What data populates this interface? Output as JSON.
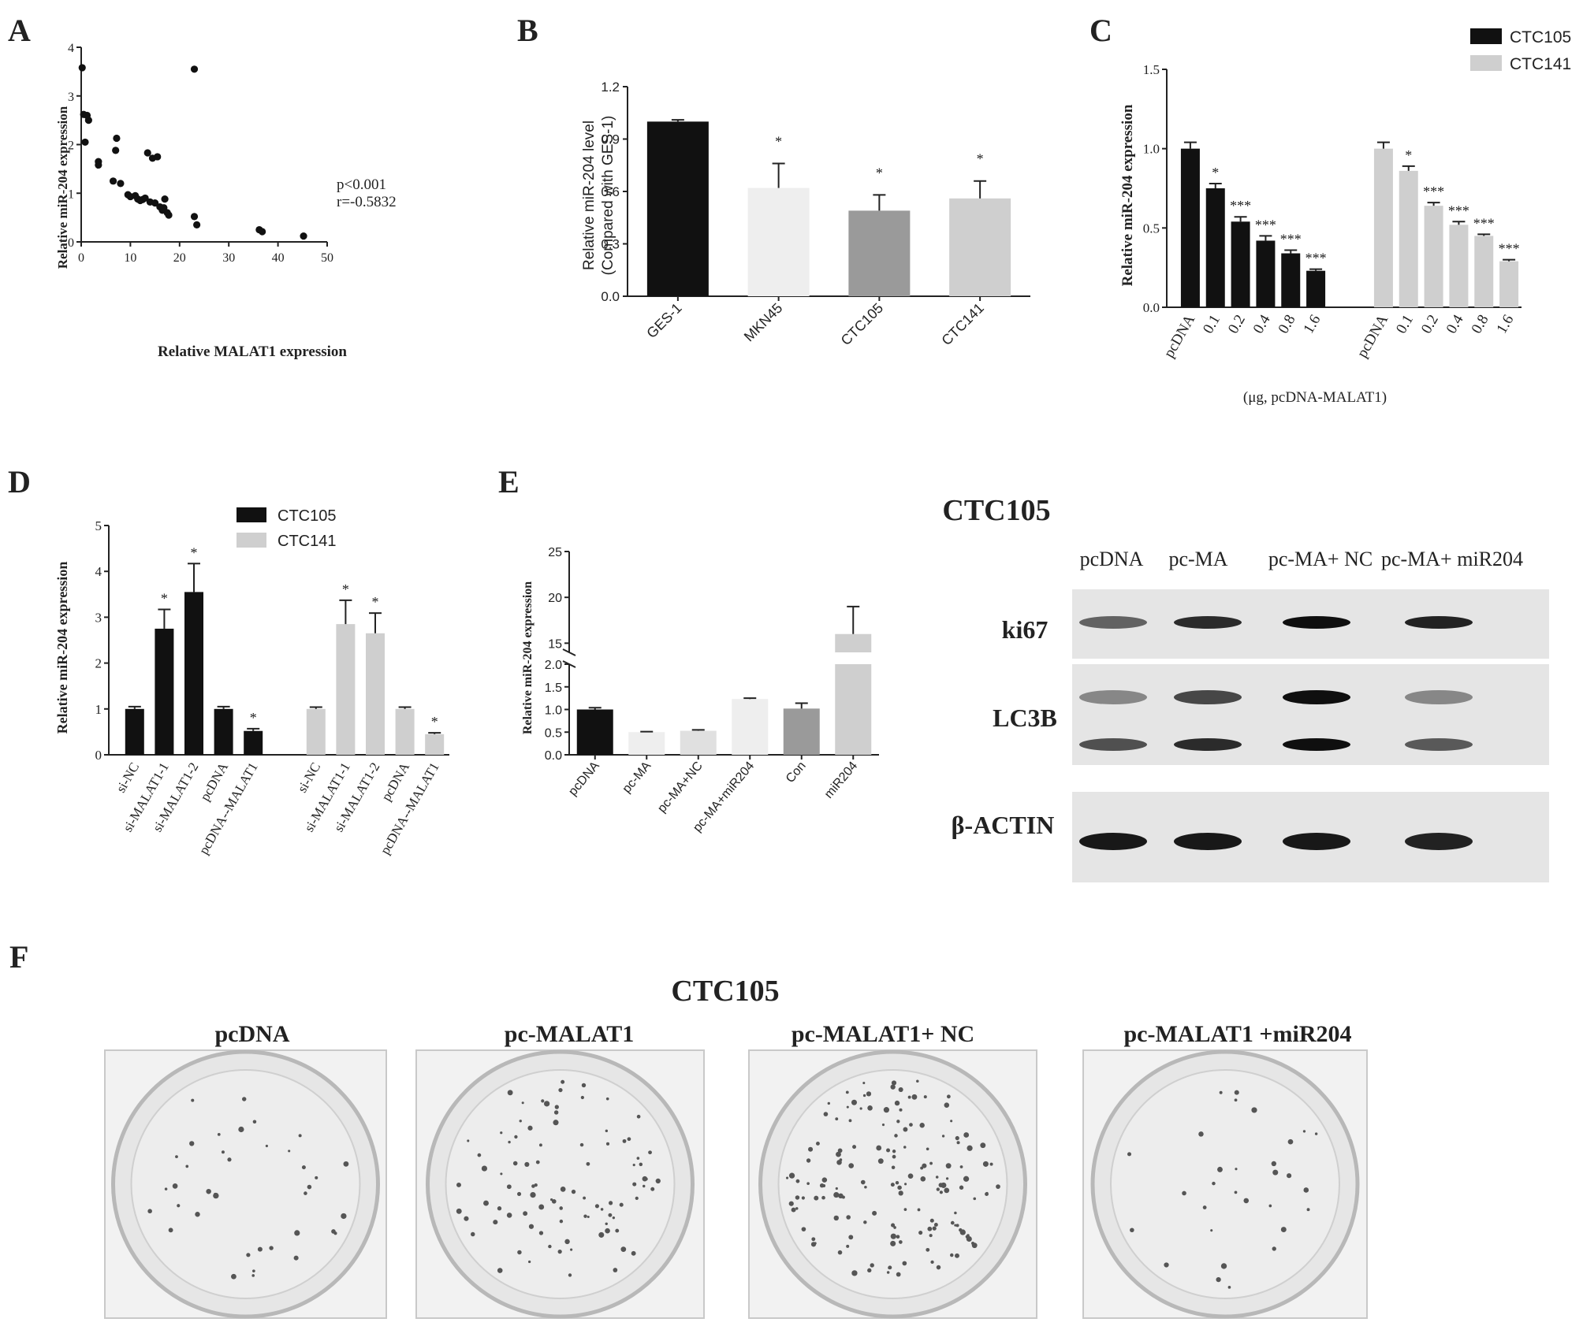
{
  "panels": {
    "A": {
      "letter": "A"
    },
    "B": {
      "letter": "B"
    },
    "C": {
      "letter": "C",
      "caption": "(μg, pcDNA-MALAT1)"
    },
    "D": {
      "letter": "D"
    },
    "E": {
      "letter": "E"
    },
    "F": {
      "letter": "F"
    }
  },
  "blot": {
    "title": "CTC105",
    "lanes": [
      "pcDNA",
      "pc-MA",
      "pc-MA+ NC",
      "pc-MA+ miR204"
    ],
    "rows": [
      "ki67",
      "LC3B",
      "β-ACTIN"
    ],
    "ki67_band": [
      0.55,
      0.85,
      1.0,
      0.9
    ],
    "lc3b_upper_band": [
      0.35,
      0.7,
      1.0,
      0.35
    ],
    "lc3b_lower_band": [
      0.65,
      0.85,
      1.0,
      0.6
    ],
    "actin_band": [
      0.95,
      0.95,
      0.95,
      0.9
    ]
  },
  "colony": {
    "title": "CTC105",
    "labels": [
      "pcDNA",
      "pc-MALAT1",
      "pc-MALAT1+ NC",
      "pc-MALAT1 +miR204"
    ],
    "relative_density": [
      0.25,
      0.6,
      1.0,
      0.2
    ]
  },
  "colors": {
    "ctc105": "#111111",
    "ctc141": "#cfcfcf",
    "mkn45": "#eeeeee",
    "ctc105_b": "#9a9a9a",
    "con": "#9a9a9a"
  },
  "chart_data": [
    {
      "panel": "A",
      "type": "scatter",
      "xlabel": "Relative MALAT1 expression",
      "ylabel": "Relative miR-204 expression",
      "xlim": [
        0,
        50
      ],
      "ylim": [
        0,
        4
      ],
      "xticks": [
        "0",
        "10",
        "20",
        "30",
        "40",
        "50"
      ],
      "yticks": [
        "0",
        "1",
        "2",
        "3",
        "4"
      ],
      "annotation": [
        "p<0.001",
        "r=-0.5832"
      ],
      "points": [
        [
          0.2,
          3.58
        ],
        [
          0.5,
          2.62
        ],
        [
          0.8,
          2.05
        ],
        [
          1.5,
          2.5
        ],
        [
          1.2,
          2.6
        ],
        [
          3.5,
          1.65
        ],
        [
          3.5,
          1.58
        ],
        [
          6.5,
          1.25
        ],
        [
          7.0,
          1.88
        ],
        [
          7.2,
          2.13
        ],
        [
          8.0,
          1.2
        ],
        [
          9.5,
          0.97
        ],
        [
          10,
          0.93
        ],
        [
          11,
          0.95
        ],
        [
          11.5,
          0.88
        ],
        [
          12,
          0.85
        ],
        [
          12.5,
          0.87
        ],
        [
          13,
          0.9
        ],
        [
          13.5,
          1.83
        ],
        [
          14,
          0.82
        ],
        [
          14.5,
          1.72
        ],
        [
          15,
          0.8
        ],
        [
          15.5,
          1.75
        ],
        [
          16,
          0.72
        ],
        [
          16.5,
          0.65
        ],
        [
          17,
          0.88
        ],
        [
          17.5,
          0.6
        ],
        [
          17.8,
          0.55
        ],
        [
          16.8,
          0.7
        ],
        [
          23,
          3.55
        ],
        [
          23,
          0.52
        ],
        [
          23.5,
          0.35
        ],
        [
          36.2,
          0.25
        ],
        [
          36.8,
          0.21
        ],
        [
          45.2,
          0.12
        ]
      ]
    },
    {
      "panel": "B",
      "type": "bar",
      "ylabel": "Relative  miR-204 level\n(Compared with GES-1)",
      "categories": [
        "GES-1",
        "MKN45",
        "CTC105",
        "CTC141"
      ],
      "values": [
        1.0,
        0.62,
        0.49,
        0.56
      ],
      "errors": [
        0.01,
        0.14,
        0.09,
        0.1
      ],
      "sig": [
        "",
        "*",
        "*",
        "*"
      ],
      "colors": [
        "#111111",
        "#eeeeee",
        "#9a9a9a",
        "#cfcfcf"
      ],
      "ylim": [
        0,
        1.2
      ],
      "yticks": [
        "0.0",
        "0.3",
        "0.6",
        "0.9",
        "1.2"
      ]
    },
    {
      "panel": "C",
      "type": "bar",
      "ylabel": "Relative miR-204  expression",
      "categories": [
        "pcDNA",
        "0.1",
        "0.2",
        "0.4",
        "0.8",
        "1.6"
      ],
      "series": [
        {
          "name": "CTC105",
          "values": [
            1.0,
            0.75,
            0.54,
            0.42,
            0.34,
            0.23
          ],
          "errors": [
            0.04,
            0.03,
            0.03,
            0.03,
            0.02,
            0.01
          ],
          "sig": [
            "",
            "*",
            "***",
            "***",
            "***",
            "***"
          ]
        },
        {
          "name": "CTC141",
          "values": [
            1.0,
            0.86,
            0.64,
            0.52,
            0.45,
            0.29
          ],
          "errors": [
            0.04,
            0.03,
            0.02,
            0.02,
            0.01,
            0.01
          ],
          "sig": [
            "",
            "*",
            "***",
            "***",
            "***",
            "***"
          ]
        }
      ],
      "ylim": [
        0,
        1.5
      ],
      "yticks": [
        "0.0",
        "0.5",
        "1.0",
        "1.5"
      ]
    },
    {
      "panel": "D",
      "type": "bar",
      "ylabel": "Relative miR-204  expression",
      "categories": [
        "si-NC",
        "si-MALAT1-1",
        "si-MALAT1-2",
        "pcDNA",
        "pcDNA--MALAT1"
      ],
      "series": [
        {
          "name": "CTC105",
          "values": [
            1.0,
            2.75,
            3.55,
            1.0,
            0.52
          ],
          "errors": [
            0.05,
            0.42,
            0.62,
            0.05,
            0.05
          ],
          "sig": [
            "",
            "*",
            "*",
            "",
            "*"
          ]
        },
        {
          "name": "CTC141",
          "values": [
            1.0,
            2.85,
            2.65,
            1.0,
            0.45
          ],
          "errors": [
            0.04,
            0.52,
            0.44,
            0.04,
            0.03
          ],
          "sig": [
            "",
            "*",
            "*",
            "",
            "*"
          ]
        }
      ],
      "ylim": [
        0,
        5
      ],
      "yticks": [
        "0",
        "1",
        "2",
        "3",
        "4",
        "5"
      ]
    },
    {
      "panel": "E",
      "type": "bar",
      "ylabel": "Relative miR-204  expression",
      "categories": [
        "pcDNA",
        "pc-MA",
        "pc-MA+NC",
        "pc-MA+miR204",
        "Con",
        "miR204"
      ],
      "values": [
        1.0,
        0.5,
        0.53,
        1.23,
        1.02,
        16.0
      ],
      "errors": [
        0.04,
        0.01,
        0.02,
        0.02,
        0.12,
        3.0
      ],
      "colors": [
        "#111111",
        "#eeeeee",
        "#e0e0e0",
        "#eeeeee",
        "#9a9a9a",
        "#cfcfcf"
      ],
      "axis_break": [
        2.0,
        14
      ],
      "yticks_low": [
        "0.0",
        "0.5",
        "1.0",
        "1.5",
        "2.0"
      ],
      "yticks_high": [
        "15",
        "20",
        "25"
      ]
    }
  ]
}
